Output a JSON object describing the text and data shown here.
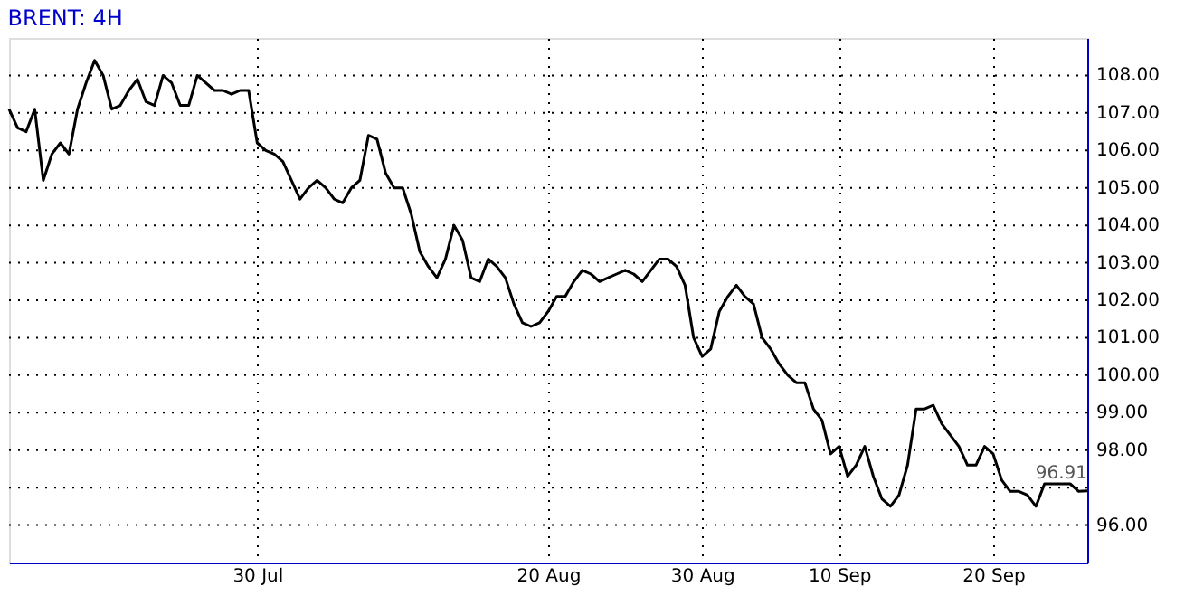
{
  "chart_data": {
    "type": "line",
    "title": "BRENT: 4H",
    "categories": [
      null,
      null,
      null,
      null,
      null,
      null,
      null,
      null,
      null,
      null,
      null,
      null,
      null,
      null,
      null,
      null,
      null,
      null,
      null,
      null,
      null,
      null,
      null,
      null,
      null,
      null,
      null,
      null,
      null,
      "30 Jul",
      null,
      null,
      null,
      null,
      null,
      null,
      null,
      null,
      null,
      null,
      null,
      null,
      null,
      null,
      null,
      null,
      null,
      null,
      null,
      null,
      null,
      null,
      null,
      null,
      null,
      null,
      null,
      null,
      null,
      null,
      null,
      null,
      null,
      "20 Aug",
      null,
      null,
      null,
      null,
      null,
      null,
      null,
      null,
      null,
      null,
      null,
      null,
      null,
      null,
      null,
      null,
      null,
      "30 Aug",
      null,
      null,
      null,
      null,
      null,
      null,
      null,
      null,
      null,
      null,
      null,
      null,
      null,
      null,
      null,
      "10 Sep",
      null,
      null,
      null,
      null,
      null,
      null,
      null,
      null,
      null,
      null,
      null,
      null,
      null,
      null,
      null,
      null,
      null,
      "20 Sep",
      null,
      null,
      null,
      null,
      null,
      null,
      null,
      null,
      null,
      null,
      null
    ],
    "series": [
      {
        "color": "#000000",
        "values": [
          107.1,
          106.6,
          106.5,
          107.1,
          105.2,
          105.9,
          106.2,
          105.9,
          107.1,
          107.8,
          108.4,
          108.0,
          107.1,
          107.2,
          107.6,
          107.9,
          107.3,
          107.2,
          108.0,
          107.8,
          107.2,
          107.2,
          108.0,
          107.8,
          107.6,
          107.6,
          107.5,
          107.6,
          107.6,
          106.2,
          106.0,
          105.9,
          105.7,
          105.2,
          104.7,
          105.0,
          105.2,
          105.0,
          104.7,
          104.6,
          105.0,
          105.2,
          106.4,
          106.3,
          105.4,
          105.0,
          105.0,
          104.3,
          103.3,
          102.9,
          102.6,
          103.1,
          104.0,
          103.6,
          102.6,
          102.5,
          103.1,
          102.9,
          102.6,
          101.9,
          101.4,
          101.3,
          101.4,
          101.7,
          102.1,
          102.1,
          102.5,
          102.8,
          102.7,
          102.5,
          102.6,
          102.7,
          102.8,
          102.7,
          102.5,
          102.8,
          103.1,
          103.1,
          102.9,
          102.4,
          101.0,
          100.5,
          100.7,
          101.7,
          102.1,
          102.4,
          102.1,
          101.9,
          101.0,
          100.7,
          100.3,
          100.0,
          99.8,
          99.8,
          99.1,
          98.8,
          97.9,
          98.1,
          97.3,
          97.6,
          98.1,
          97.3,
          96.7,
          96.5,
          96.8,
          97.6,
          99.1,
          99.1,
          99.2,
          98.7,
          98.4,
          98.1,
          97.6,
          97.6,
          98.1,
          97.9,
          97.2,
          96.9,
          96.9,
          96.8,
          96.5,
          97.1,
          97.1,
          97.1,
          97.1,
          96.9,
          96.91
        ]
      }
    ],
    "ylim": [
      95,
      109
    ],
    "yticks": [
      {
        "value": 96,
        "label": "96.00"
      },
      {
        "value": 97,
        "label": null
      },
      {
        "value": 98,
        "label": "98.00"
      },
      {
        "value": 99,
        "label": "99.00"
      },
      {
        "value": 100,
        "label": "100.00"
      },
      {
        "value": 101,
        "label": "101.00"
      },
      {
        "value": 102,
        "label": "102.00"
      },
      {
        "value": 103,
        "label": "103.00"
      },
      {
        "value": 104,
        "label": "104.00"
      },
      {
        "value": 105,
        "label": "105.00"
      },
      {
        "value": 106,
        "label": "106.00"
      },
      {
        "value": 107,
        "label": "107.00"
      },
      {
        "value": 108,
        "label": "108.00"
      }
    ],
    "annotations": [
      {
        "text": "96.91",
        "y": 96.91
      }
    ],
    "grid": true,
    "marker": "none",
    "line_style": "solid"
  }
}
